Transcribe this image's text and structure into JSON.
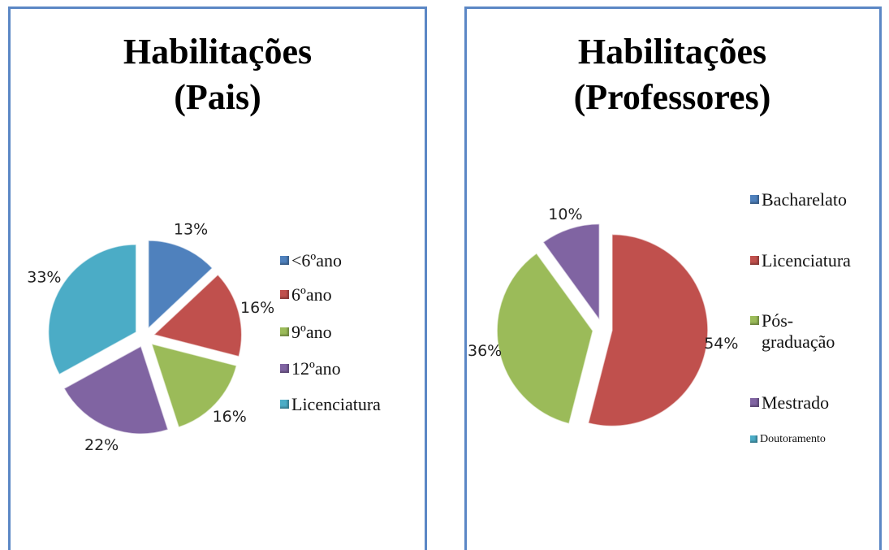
{
  "chart_data": [
    {
      "type": "pie",
      "title": "Habilitações (Pais)",
      "categories": [
        "<6ºano",
        "6ºano",
        "9ºano",
        "12ºano",
        "Licenciatura"
      ],
      "values": [
        13,
        16,
        16,
        22,
        33
      ],
      "value_labels": [
        "13%",
        "16%",
        "16%",
        "22%",
        "33%"
      ],
      "colors": [
        "#4f81bd",
        "#c0504d",
        "#9bbb59",
        "#8064a2",
        "#4bacc6"
      ],
      "legend": "right"
    },
    {
      "type": "pie",
      "title": "Habilitações (Professores)",
      "categories": [
        "Bacharelato",
        "Licenciatura",
        "Pós-graduação",
        "Mestrado",
        "Doutoramento"
      ],
      "values": [
        0,
        54,
        36,
        10,
        0
      ],
      "value_labels": [
        null,
        "54%",
        "36%",
        "10%",
        null
      ],
      "colors": [
        "#4f81bd",
        "#c0504d",
        "#9bbb59",
        "#8064a2",
        "#4bacc6"
      ],
      "legend": "right"
    }
  ]
}
